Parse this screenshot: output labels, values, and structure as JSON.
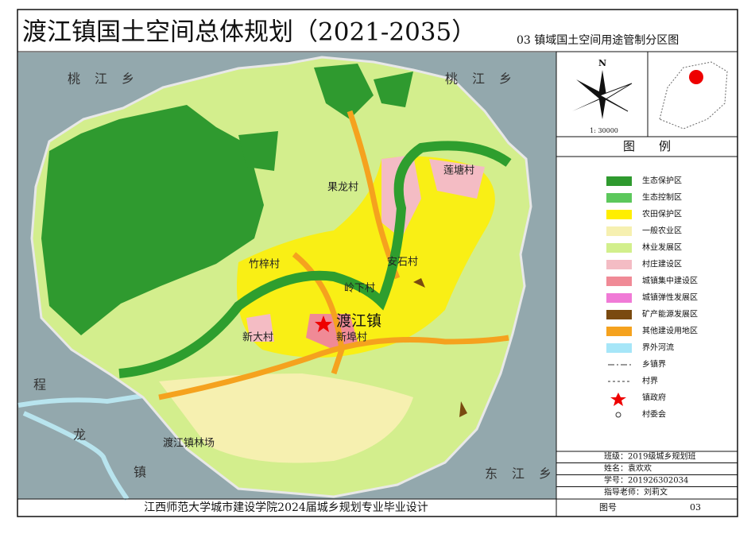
{
  "header": {
    "title": "渡江镇国土空间总体规划（2021-2035）",
    "subtitle": "03 镇域国土空间用途管制分区图"
  },
  "map": {
    "labels": [
      "桃江乡",
      "桃江乡",
      "程",
      "龙",
      "镇",
      "东江乡",
      "果龙村",
      "莲塘村",
      "竹梓村",
      "安石村",
      "岭下村",
      "渡江镇",
      "新埠村",
      "新大村",
      "渡江镇林场"
    ],
    "compass": {
      "north": "N",
      "scale": "1: 30000"
    }
  },
  "legend": {
    "title": "图　　例",
    "items": [
      {
        "label": "生态保护区",
        "color": "#2f9a2f"
      },
      {
        "label": "生态控制区",
        "color": "#5cc85c"
      },
      {
        "label": "农田保护区",
        "color": "#ffee00"
      },
      {
        "label": "一般农业区",
        "color": "#f6f0b0"
      },
      {
        "label": "林业发展区",
        "color": "#d2ef8c"
      },
      {
        "label": "村庄建设区",
        "color": "#f4bcc4"
      },
      {
        "label": "城镇集中建设区",
        "color": "#f08a96"
      },
      {
        "label": "城镇弹性发展区",
        "color": "#f07ad6"
      },
      {
        "label": "矿产能源发展区",
        "color": "#7a4a10"
      },
      {
        "label": "其他建设用地区",
        "color": "#f5a21e"
      },
      {
        "label": "界外河流",
        "color": "#a6e6f8"
      },
      {
        "label": "乡镇界"
      },
      {
        "label": "村界"
      },
      {
        "label": "镇政府"
      },
      {
        "label": "村委会"
      }
    ]
  },
  "info": {
    "rows": [
      "班级：2019级城乡规划班",
      "姓名：袁欢欢",
      "学号：201926302034",
      "指导老师：刘莉文"
    ]
  },
  "footer": {
    "school": "江西师范大学城市建设学院2024届城乡规划专业毕业设计",
    "figure_label": "图号",
    "figure_number": "03"
  }
}
